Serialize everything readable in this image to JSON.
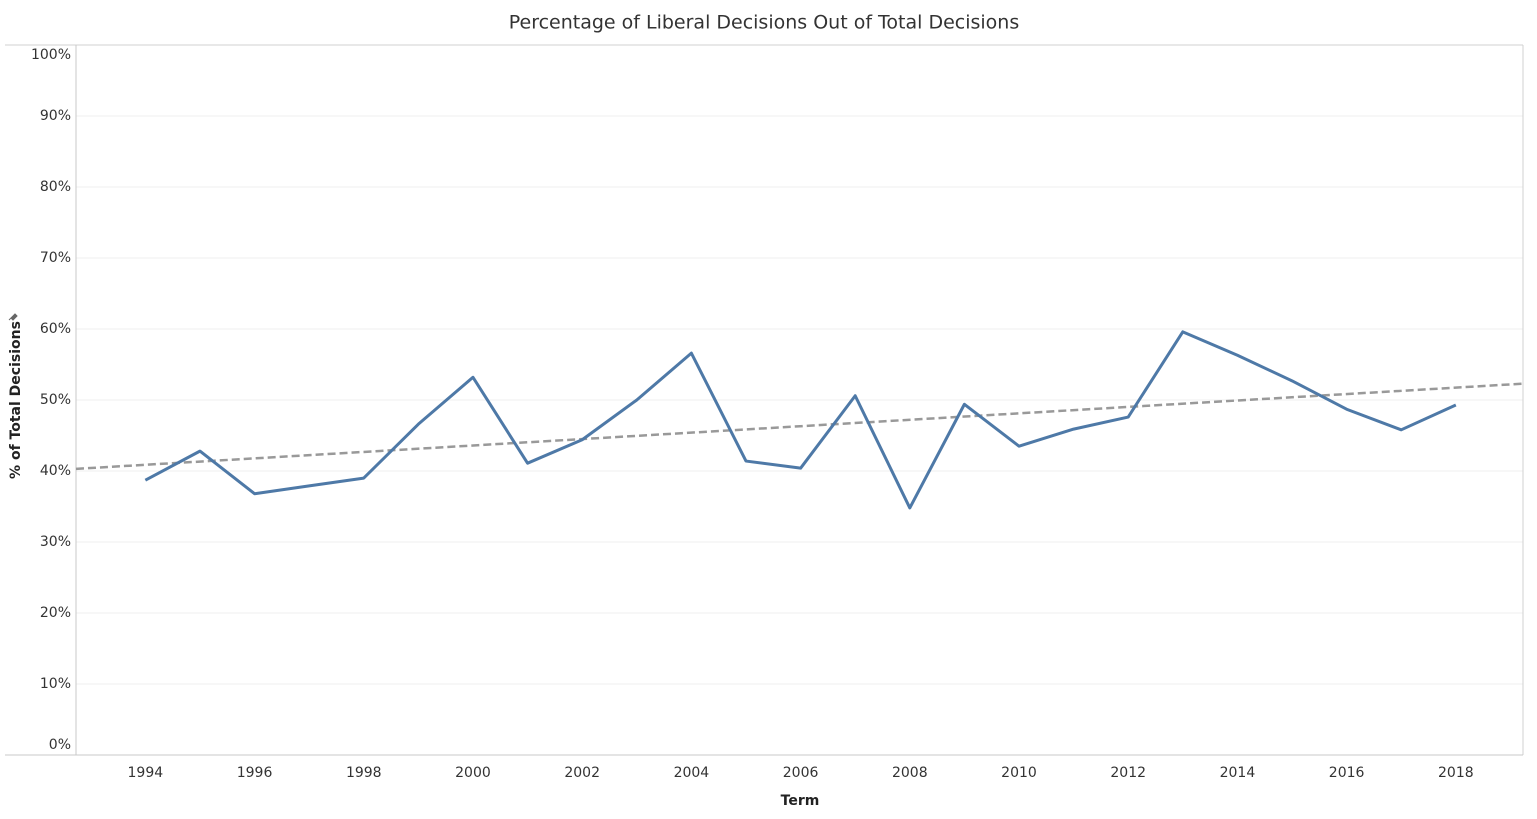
{
  "chart_data": {
    "type": "line",
    "title": "Percentage of Liberal Decisions Out of Total Decisions",
    "y_label": "% of Total Decisions",
    "x_label": "Term",
    "x": [
      1994,
      1995,
      1996,
      1997,
      1998,
      1999,
      2000,
      2001,
      2002,
      2003,
      2004,
      2005,
      2006,
      2007,
      2008,
      2009,
      2010,
      2011,
      2012,
      2013,
      2014,
      2015,
      2016,
      2017,
      2018
    ],
    "series": [
      {
        "color": "#4e79a7",
        "values": [
          38.7,
          42.8,
          36.8,
          37.9,
          39.0,
          46.6,
          53.2,
          41.1,
          44.4,
          50.0,
          56.6,
          41.4,
          40.4,
          50.6,
          34.8,
          49.4,
          43.5,
          45.9,
          47.6,
          59.6,
          56.3,
          52.7,
          48.7,
          45.8,
          49.3
        ]
      }
    ],
    "trend": {
      "x": [
        1992.73,
        2019.23
      ],
      "values": [
        40.3,
        52.3
      ],
      "color": "#999999"
    },
    "xlim": [
      1992.73,
      2019.23
    ],
    "ylim": [
      0,
      100
    ],
    "xticks": [
      1994,
      1996,
      1998,
      2000,
      2002,
      2004,
      2006,
      2008,
      2010,
      2012,
      2014,
      2016,
      2018
    ],
    "yticks": [
      {
        "value": 0,
        "label": "0%"
      },
      {
        "value": 10,
        "label": "10%"
      },
      {
        "value": 20,
        "label": "20%"
      },
      {
        "value": 30,
        "label": "30%"
      },
      {
        "value": 40,
        "label": "40%"
      },
      {
        "value": 50,
        "label": "50%"
      },
      {
        "value": 60,
        "label": "60%"
      },
      {
        "value": 70,
        "label": "70%"
      },
      {
        "value": 80,
        "label": "80%"
      },
      {
        "value": 90,
        "label": "90%"
      },
      {
        "value": 100,
        "label": "100%"
      }
    ],
    "grid": true
  }
}
